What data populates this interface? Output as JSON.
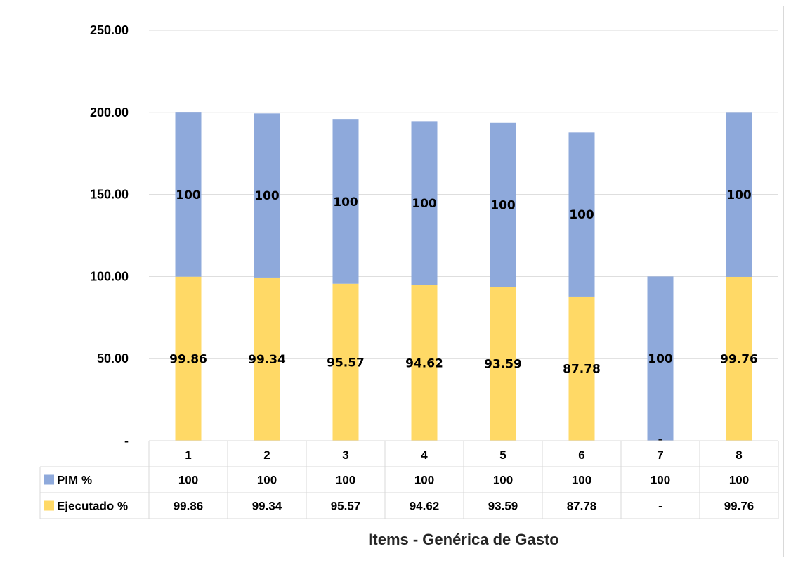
{
  "chart_data": {
    "type": "bar",
    "stacked": true,
    "categories": [
      "1",
      "2",
      "3",
      "4",
      "5",
      "6",
      "7",
      "8"
    ],
    "series": [
      {
        "name": "Ejecutado %",
        "color": "#FFD966",
        "values": [
          99.86,
          99.34,
          95.57,
          94.62,
          93.59,
          87.78,
          0,
          99.76
        ],
        "labels": [
          "99.86",
          "99.34",
          "95.57",
          "94.62",
          "93.59",
          "87.78",
          "-",
          "99.76"
        ]
      },
      {
        "name": "PIM %",
        "color": "#8EA9DB",
        "values": [
          100,
          100,
          100,
          100,
          100,
          100,
          100,
          100
        ],
        "labels": [
          "100",
          "100",
          "100",
          "100",
          "100",
          "100",
          "100",
          "100"
        ]
      }
    ],
    "yticks": [
      "-",
      "50.00",
      "100.00",
      "150.00",
      "200.00",
      "250.00"
    ],
    "ylim": [
      0,
      250
    ],
    "xlabel": "Items - Genérica de Gasto",
    "ylabel": "",
    "grid": true,
    "data_table": true
  }
}
